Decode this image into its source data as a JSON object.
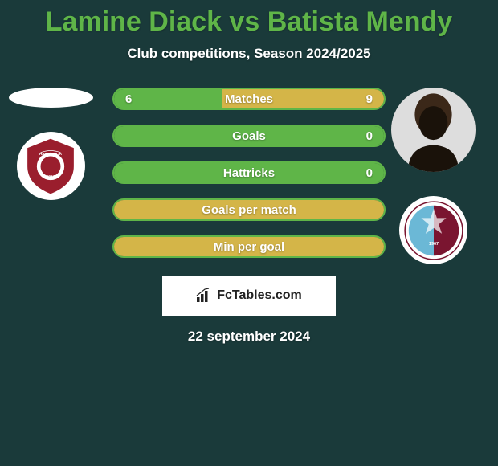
{
  "title": "Lamine Diack vs Batista Mendy",
  "subtitle": "Club competitions, Season 2024/2025",
  "date": "22 september 2024",
  "attribution": "FcTables.com",
  "colors": {
    "background": "#1a3a3a",
    "accent": "#5fb548",
    "secondary": "#d4b548",
    "text": "#ffffff",
    "club_left_primary": "#9a1e2d",
    "club_left_text": "HATAYSPOR",
    "club_right_primary": "#7a1530",
    "club_right_secondary": "#6bb8d6"
  },
  "left": {
    "player": "Lamine Diack",
    "club": "Hatayspor"
  },
  "right": {
    "player": "Batista Mendy",
    "club": "Trabzonspor"
  },
  "stats": [
    {
      "label": "Matches",
      "left_value": "6",
      "right_value": "9",
      "left_fill_pct": 40,
      "right_fill_pct": 60,
      "show_values": true,
      "fill_mode": "split"
    },
    {
      "label": "Goals",
      "left_value": "",
      "right_value": "0",
      "left_fill_pct": 100,
      "right_fill_pct": 0,
      "show_values": true,
      "fill_mode": "left-full"
    },
    {
      "label": "Hattricks",
      "left_value": "",
      "right_value": "0",
      "left_fill_pct": 100,
      "right_fill_pct": 0,
      "show_values": true,
      "fill_mode": "left-full"
    },
    {
      "label": "Goals per match",
      "left_value": "",
      "right_value": "",
      "left_fill_pct": 0,
      "right_fill_pct": 100,
      "show_values": false,
      "fill_mode": "right-full"
    },
    {
      "label": "Min per goal",
      "left_value": "",
      "right_value": "",
      "left_fill_pct": 0,
      "right_fill_pct": 100,
      "show_values": false,
      "fill_mode": "right-full"
    }
  ]
}
